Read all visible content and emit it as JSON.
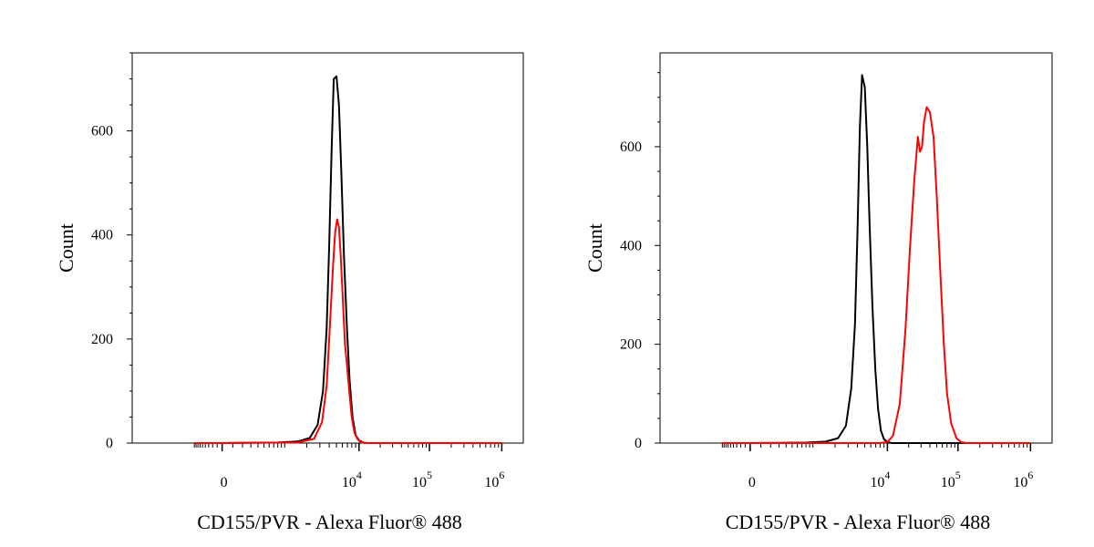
{
  "chart_data": [
    {
      "type": "line",
      "xlabel": "CD155/PVR - Alexa Fluor® 488",
      "ylabel": "Count",
      "xscale": "biexponential",
      "ylim": [
        0,
        750
      ],
      "yticks": [
        0,
        200,
        400,
        600
      ],
      "xtick_labels": [
        {
          "base": "0",
          "exp": ""
        },
        {
          "base": "10",
          "exp": "4"
        },
        {
          "base": "10",
          "exp": "5"
        },
        {
          "base": "10",
          "exp": "6"
        }
      ],
      "series": [
        {
          "color": "#000000",
          "x": [
            -900,
            0,
            800,
            1500,
            2200,
            2800,
            3300,
            3700,
            4000,
            4300,
            4600,
            5000,
            5400,
            5800,
            6300,
            6900,
            7500,
            8200,
            9000,
            10000,
            11500,
            13000,
            20000,
            40000,
            100000,
            300000,
            1000000
          ],
          "y": [
            0,
            0,
            1,
            3,
            10,
            35,
            100,
            220,
            380,
            560,
            700,
            705,
            650,
            520,
            360,
            220,
            120,
            50,
            15,
            5,
            1,
            0,
            0,
            0,
            0,
            0,
            0
          ]
        },
        {
          "color": "#ff0000",
          "x": [
            -900,
            0,
            1500,
            2500,
            3200,
            3700,
            4100,
            4500,
            4800,
            5100,
            5400,
            5700,
            6100,
            6500,
            6900,
            7400,
            8000,
            8700,
            9500,
            10500,
            12000,
            20000,
            40000,
            100000,
            300000,
            1000000
          ],
          "y": [
            0,
            0,
            1,
            8,
            40,
            110,
            230,
            340,
            405,
            430,
            415,
            360,
            270,
            190,
            150,
            100,
            50,
            20,
            8,
            2,
            0,
            0,
            0,
            0,
            0,
            0
          ]
        }
      ]
    },
    {
      "type": "line",
      "xlabel": "CD155/PVR - Alexa Fluor® 488",
      "ylabel": "Count",
      "xscale": "biexponential",
      "ylim": [
        0,
        790
      ],
      "yticks": [
        0,
        200,
        400,
        600
      ],
      "xtick_labels": [
        {
          "base": "0",
          "exp": ""
        },
        {
          "base": "10",
          "exp": "4"
        },
        {
          "base": "10",
          "exp": "5"
        },
        {
          "base": "10",
          "exp": "6"
        }
      ],
      "series": [
        {
          "color": "#000000",
          "x": [
            -900,
            0,
            800,
            1500,
            2200,
            2800,
            3300,
            3700,
            4000,
            4300,
            4600,
            5000,
            5400,
            5800,
            6300,
            6900,
            7500,
            8200,
            9000,
            10000,
            11500,
            13000,
            20000,
            40000,
            100000,
            300000,
            1000000
          ],
          "y": [
            0,
            0,
            1,
            3,
            10,
            35,
            110,
            240,
            430,
            640,
            745,
            720,
            600,
            440,
            280,
            150,
            70,
            25,
            8,
            2,
            0,
            0,
            0,
            0,
            0,
            0,
            0
          ]
        },
        {
          "color": "#ff0000",
          "x": [
            -900,
            0,
            8000,
            10000,
            12000,
            15000,
            18000,
            21000,
            24000,
            27000,
            29000,
            31000,
            33000,
            36000,
            40000,
            45000,
            50000,
            56000,
            63000,
            70000,
            80000,
            95000,
            110000,
            130000,
            160000,
            1000000
          ],
          "y": [
            0,
            0,
            0,
            2,
            15,
            80,
            230,
            400,
            530,
            620,
            590,
            600,
            650,
            680,
            670,
            620,
            500,
            350,
            200,
            100,
            40,
            10,
            2,
            0,
            0,
            0
          ]
        }
      ]
    }
  ]
}
